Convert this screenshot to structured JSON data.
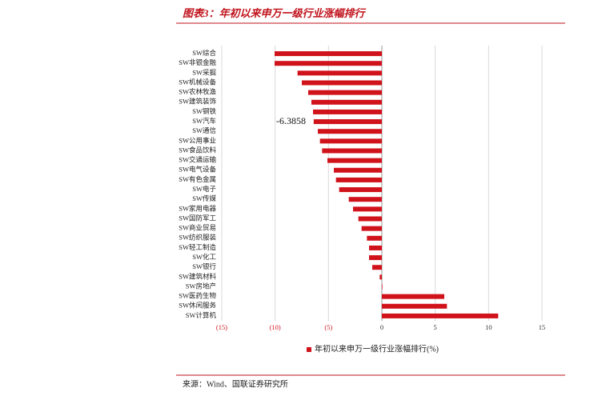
{
  "chart_data": {
    "type": "bar",
    "orientation": "horizontal",
    "title": "图表3：年初以来申万一级行业涨幅排行",
    "source": "来源：Wind、国联证券研究所",
    "categories": [
      "SW综合",
      "SW非银金融",
      "SW采掘",
      "SW机械设备",
      "SW农林牧渔",
      "SW建筑装饰",
      "SW钢铁",
      "SW汽车",
      "SW通信",
      "SW公用事业",
      "SW食品饮料",
      "SW交通运输",
      "SW电气设备",
      "SW有色金属",
      "SW电子",
      "SW传媒",
      "SW家用电器",
      "SW国防军工",
      "SW商业贸易",
      "SW纺织服装",
      "SW轻工制造",
      "SW化工",
      "SW银行",
      "SW建筑材料",
      "SW房地产",
      "SW医药生物",
      "SW休闲服务",
      "SW计算机"
    ],
    "series": [
      {
        "name": "年初以来申万一级行业涨幅排行(%)",
        "color": "#d0121b",
        "values": [
          -10.05,
          -10.05,
          -7.9,
          -7.5,
          -6.9,
          -6.6,
          -6.45,
          -6.3858,
          -6.0,
          -5.8,
          -5.6,
          -5.1,
          -4.5,
          -4.3,
          -4.0,
          -3.1,
          -2.7,
          -2.2,
          -1.9,
          -1.4,
          -1.2,
          -1.2,
          -0.9,
          -0.2,
          0.05,
          5.85,
          6.1,
          10.9
        ]
      }
    ],
    "xlim": [
      -15,
      15
    ],
    "xticks": [
      {
        "value": -15,
        "label": "(15)"
      },
      {
        "value": -10,
        "label": "(10)"
      },
      {
        "value": -5,
        "label": "(5)"
      },
      0,
      5,
      10,
      15
    ],
    "grid": true,
    "legend": "bottom"
  }
}
